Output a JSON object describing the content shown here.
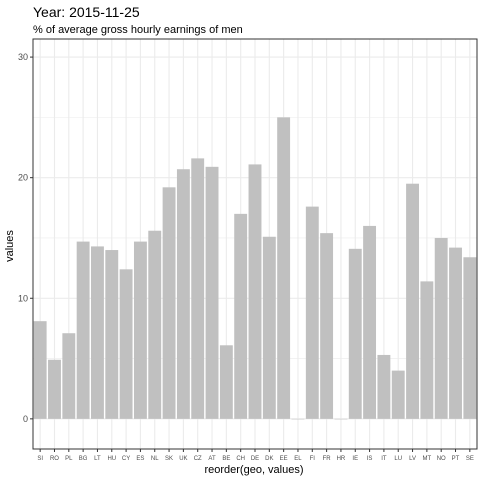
{
  "chart_data": {
    "type": "bar",
    "title": "Year: 2015-11-25",
    "subtitle": "% of average gross hourly earnings of men",
    "xlabel": "reorder(geo, values)",
    "ylabel": "values",
    "categories": [
      "SI",
      "RO",
      "PL",
      "BG",
      "LT",
      "HU",
      "CY",
      "ES",
      "NL",
      "SK",
      "UK",
      "CZ",
      "AT",
      "BE",
      "CH",
      "DE",
      "DK",
      "EE",
      "EL",
      "FI",
      "FR",
      "HR",
      "IE",
      "IS",
      "IT",
      "LU",
      "LV",
      "MT",
      "NO",
      "PT",
      "SE"
    ],
    "values": [
      8.1,
      4.9,
      7.1,
      14.7,
      14.3,
      14.0,
      12.4,
      14.7,
      15.6,
      19.2,
      20.7,
      21.6,
      20.9,
      6.1,
      17.0,
      21.1,
      15.1,
      25.0,
      0,
      17.6,
      15.4,
      0,
      14.1,
      16.0,
      5.3,
      4.0,
      19.5,
      11.4,
      15.0,
      14.2,
      13.4
    ],
    "yticks": [
      0,
      10,
      20,
      30
    ],
    "ylim": [
      -2.5,
      31.5
    ],
    "grid": true,
    "bar_color": "#c0c0c0",
    "panel_border_color": "#333333",
    "grid_color": "#ebebeb"
  }
}
